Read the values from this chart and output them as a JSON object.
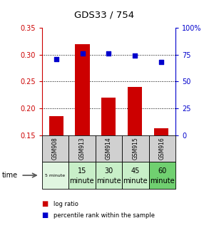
{
  "title": "GDS33 / 754",
  "samples": [
    "GSM908",
    "GSM913",
    "GSM914",
    "GSM915",
    "GSM916"
  ],
  "time_labels_top": [
    "5 minute",
    "15",
    "30",
    "45",
    "60"
  ],
  "time_labels_bot": [
    "",
    "minute",
    "minute",
    "minute",
    "minute"
  ],
  "time_small": [
    true,
    false,
    false,
    false,
    false
  ],
  "log_ratio": [
    0.185,
    0.32,
    0.22,
    0.24,
    0.163
  ],
  "percentile_rank": [
    71,
    76,
    76,
    74,
    68
  ],
  "ylim_left": [
    0.15,
    0.35
  ],
  "ylim_right": [
    0,
    100
  ],
  "yticks_left": [
    0.15,
    0.2,
    0.25,
    0.3,
    0.35
  ],
  "yticks_right": [
    0,
    25,
    50,
    75,
    100
  ],
  "bar_color": "#cc0000",
  "dot_color": "#0000cc",
  "bg_color": "#ffffff",
  "cell_bg_gray": "#d0d0d0",
  "time_bg_colors": [
    "#e0f5e0",
    "#c8efc8",
    "#c8efc8",
    "#c8efc8",
    "#70d070"
  ],
  "left_axis_color": "#cc0000",
  "right_axis_color": "#0000cc",
  "legend_log": "log ratio",
  "legend_pct": "percentile rank within the sample"
}
